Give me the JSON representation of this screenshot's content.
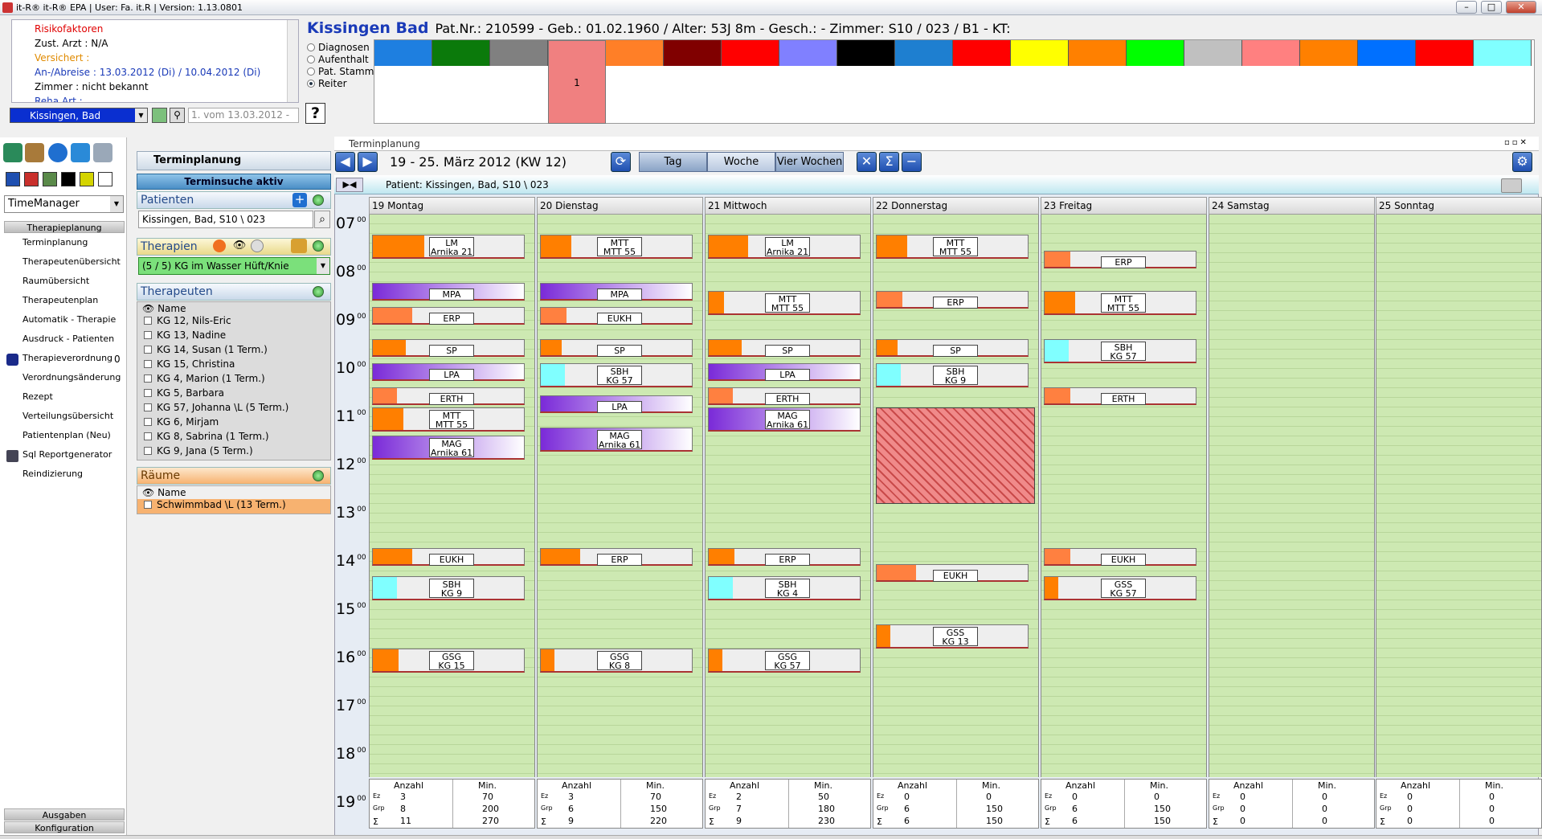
{
  "window": {
    "title": "it-R® it-R® EPA | User: Fa. it.R | Version: 1.13.0801",
    "min": "–",
    "max": "□",
    "close": "✕"
  },
  "info": {
    "lines": [
      {
        "text": "Risikofaktoren",
        "color": "#e00000"
      },
      {
        "text": "Zust. Arzt : N/A",
        "color": "#000000"
      },
      {
        "text": "Versichert :",
        "color": "#e08a00"
      },
      {
        "text": "An-/Abreise : 13.03.2012 (Di) / 10.04.2012 (Di)",
        "color": "#1a3ab8"
      },
      {
        "text": "Zimmer : nicht bekannt",
        "color": "#000000"
      },
      {
        "text": "Reha Art :",
        "color": "#1a3ab8"
      }
    ],
    "radios": [
      {
        "label": "Diagnosen",
        "on": false
      },
      {
        "label": "Aufenthalt",
        "on": false
      },
      {
        "label": "Pat. Stamm",
        "on": false
      },
      {
        "label": "Reiter",
        "on": true
      }
    ],
    "patient_combo": "Kissingen, Bad",
    "vom_combo": "1. vom 13.03.2012 -",
    "help": "?"
  },
  "patient_header": {
    "name": "Kissingen Bad",
    "rest": "Pat.Nr.: 210599  -  Geb.: 01.02.1960 / Alter: 53J 8m  -  Gesch.:     -  Zimmer: S10 / 023 / B1  -  KT:"
  },
  "color_strip": {
    "colors": [
      "#1e7fe0",
      "#0b7a0b",
      "#808080",
      "#f08080",
      "#ff7f27",
      "#800000",
      "#ff0000",
      "#8080ff",
      "#000000",
      "#1e7fd0",
      "#ff0000",
      "#ffff00",
      "#ff8000",
      "#00ff00",
      "#c0c0c0",
      "#ff8080",
      "#ff8000",
      "#0070ff",
      "#ff0000",
      "#80ffff"
    ],
    "selected_label": "1"
  },
  "leftnav": {
    "combo": "TimeManager",
    "header": "Therapieplanung",
    "items": [
      "Terminplanung",
      "Therapeutenübersicht",
      "Raumübersicht",
      "Therapeutenplan",
      "Automatik - Therapie",
      "Ausdruck - Patienten",
      "Therapieverordnung",
      "Verordnungsänderung",
      "Rezept",
      "Verteilungsübersicht",
      "Patientenplan (Neu)",
      "Sql Reportgenerator",
      "Reindizierung"
    ],
    "therapieverordnung_count": "0",
    "footer1": "Ausgaben",
    "footer2": "Konfiguration",
    "squares": [
      "#1f4fb0",
      "#c9302c",
      "#5a8a4a",
      "#000000",
      "#d4d400",
      "#ffffff"
    ]
  },
  "mid": {
    "title": "Terminplanung",
    "subtitle": "Terminsuche aktiv",
    "patienten": "Patienten",
    "patient_search": "Kissingen, Bad, S10 \\ 023",
    "therapien": "Therapien",
    "therapie_combo": "(5 / 5) KG im Wasser Hüft/Knie",
    "therapeuten": "Therapeuten",
    "name_col": "Name",
    "therapists": [
      "KG 12, Nils-Eric",
      "KG 13, Nadine",
      "KG 14, Susan  (1 Term.)",
      "KG 15, Christina",
      "KG 4, Marion  (1 Term.)",
      "KG 5, Barbara",
      "KG 57, Johanna \\L  (5 Term.)",
      "KG 6, Mirjam",
      "KG 8, Sabrina  (1 Term.)",
      "KG 9, Jana  (5 Term.)"
    ],
    "raeume": "Räume",
    "rooms": [
      "Schwimmbad \\L  (13 Term.)"
    ]
  },
  "cal": {
    "window_title": "Terminplanung",
    "week": "19 - 25. März 2012 (KW 12)",
    "views": [
      "Tag",
      "Woche",
      "Vier Wochen"
    ],
    "patient": "Patient: Kissingen, Bad, S10 \\ 023",
    "days": [
      "19 Montag",
      "20 Dienstag",
      "21 Mittwoch",
      "22 Donnerstag",
      "23 Freitag",
      "24 Samstag",
      "25 Sonntag"
    ],
    "hours": [
      "07",
      "08",
      "09",
      "10",
      "11",
      "12",
      "13",
      "14",
      "15",
      "16",
      "17",
      "18",
      "19"
    ],
    "minutes": "00",
    "stats_headers": [
      "Anzahl",
      "Min."
    ],
    "stats_rowlabels": [
      "Ez",
      "Grp",
      "Σ"
    ],
    "stats": [
      [
        [
          "3",
          "70"
        ],
        [
          "8",
          "200"
        ],
        [
          "11",
          "270"
        ]
      ],
      [
        [
          "3",
          "70"
        ],
        [
          "6",
          "150"
        ],
        [
          "9",
          "220"
        ]
      ],
      [
        [
          "2",
          "50"
        ],
        [
          "7",
          "180"
        ],
        [
          "9",
          "230"
        ]
      ],
      [
        [
          "0",
          "0"
        ],
        [
          "6",
          "150"
        ],
        [
          "6",
          "150"
        ]
      ],
      [
        [
          "0",
          "0"
        ],
        [
          "6",
          "150"
        ],
        [
          "6",
          "150"
        ]
      ],
      [
        [
          "0",
          "0"
        ],
        [
          "0",
          "0"
        ],
        [
          "0",
          "0"
        ]
      ],
      [
        [
          "0",
          "0"
        ],
        [
          "0",
          "0"
        ],
        [
          "0",
          "0"
        ]
      ]
    ]
  },
  "appointments": [
    {
      "day": 0,
      "start": 7.25,
      "dur": 0.5,
      "l1": "LM",
      "l2": "Arnika 21",
      "color": "#ff7f00",
      "cw": 0.34
    },
    {
      "day": 0,
      "start": 8.25,
      "dur": 0.33,
      "l1": "MPA",
      "l2": "",
      "color": "",
      "grad": true
    },
    {
      "day": 0,
      "start": 8.75,
      "dur": 0.33,
      "l1": "ERP",
      "l2": "",
      "color": "#ff8040",
      "cw": 0.26
    },
    {
      "day": 0,
      "start": 9.42,
      "dur": 0.33,
      "l1": "SP",
      "l2": "",
      "color": "#ff7f00",
      "cw": 0.22
    },
    {
      "day": 0,
      "start": 9.92,
      "dur": 0.33,
      "l1": "LPA",
      "l2": "",
      "color": "",
      "grad": true
    },
    {
      "day": 0,
      "start": 10.42,
      "dur": 0.33,
      "l1": "ERTH",
      "l2": "",
      "color": "#ff8040",
      "cw": 0.16
    },
    {
      "day": 0,
      "start": 10.83,
      "dur": 0.5,
      "l1": "MTT",
      "l2": "MTT 55",
      "color": "#ff7f00",
      "cw": 0.2
    },
    {
      "day": 0,
      "start": 11.42,
      "dur": 0.5,
      "l1": "MAG",
      "l2": "Arnika 61",
      "color": "",
      "grad": true
    },
    {
      "day": 0,
      "start": 13.75,
      "dur": 0.33,
      "l1": "EUKH",
      "l2": "",
      "color": "#ff7f00",
      "cw": 0.26
    },
    {
      "day": 0,
      "start": 14.33,
      "dur": 0.5,
      "l1": "SBH",
      "l2": "KG 9",
      "color": "#80ffff",
      "cw": 0.16
    },
    {
      "day": 0,
      "start": 15.83,
      "dur": 0.5,
      "l1": "GSG",
      "l2": "KG 15",
      "color": "#ff7f00",
      "cw": 0.17
    },
    {
      "day": 1,
      "start": 7.25,
      "dur": 0.5,
      "l1": "MTT",
      "l2": "MTT 55",
      "color": "#ff7f00",
      "cw": 0.2
    },
    {
      "day": 1,
      "start": 8.25,
      "dur": 0.33,
      "l1": "MPA",
      "l2": "",
      "color": "",
      "grad": true
    },
    {
      "day": 1,
      "start": 8.75,
      "dur": 0.33,
      "l1": "EUKH",
      "l2": "",
      "color": "#ff8040",
      "cw": 0.17
    },
    {
      "day": 1,
      "start": 9.42,
      "dur": 0.33,
      "l1": "SP",
      "l2": "",
      "color": "#ff7f00",
      "cw": 0.14
    },
    {
      "day": 1,
      "start": 9.92,
      "dur": 0.5,
      "l1": "SBH",
      "l2": "KG 57",
      "color": "#80ffff",
      "cw": 0.16
    },
    {
      "day": 1,
      "start": 10.58,
      "dur": 0.33,
      "l1": "LPA",
      "l2": "",
      "color": "",
      "grad": true
    },
    {
      "day": 1,
      "start": 11.25,
      "dur": 0.5,
      "l1": "MAG",
      "l2": "Arnika 61",
      "color": "",
      "grad": true
    },
    {
      "day": 1,
      "start": 13.75,
      "dur": 0.33,
      "l1": "ERP",
      "l2": "",
      "color": "#ff7f00",
      "cw": 0.26
    },
    {
      "day": 1,
      "start": 15.83,
      "dur": 0.5,
      "l1": "GSG",
      "l2": "KG 8",
      "color": "#ff7f00",
      "cw": 0.09
    },
    {
      "day": 2,
      "start": 7.25,
      "dur": 0.5,
      "l1": "LM",
      "l2": "Arnika 21",
      "color": "#ff7f00",
      "cw": 0.26
    },
    {
      "day": 2,
      "start": 8.42,
      "dur": 0.5,
      "l1": "MTT",
      "l2": "MTT 55",
      "color": "#ff7f00",
      "cw": 0.1
    },
    {
      "day": 2,
      "start": 9.42,
      "dur": 0.33,
      "l1": "SP",
      "l2": "",
      "color": "#ff7f00",
      "cw": 0.22
    },
    {
      "day": 2,
      "start": 9.92,
      "dur": 0.33,
      "l1": "LPA",
      "l2": "",
      "color": "",
      "grad": true
    },
    {
      "day": 2,
      "start": 10.42,
      "dur": 0.33,
      "l1": "ERTH",
      "l2": "",
      "color": "#ff8040",
      "cw": 0.16
    },
    {
      "day": 2,
      "start": 10.83,
      "dur": 0.5,
      "l1": "MAG",
      "l2": "Arnika 61",
      "color": "",
      "grad": true
    },
    {
      "day": 2,
      "start": 13.75,
      "dur": 0.33,
      "l1": "ERP",
      "l2": "",
      "color": "#ff7f00",
      "cw": 0.17
    },
    {
      "day": 2,
      "start": 14.33,
      "dur": 0.5,
      "l1": "SBH",
      "l2": "KG 4",
      "color": "#80ffff",
      "cw": 0.16
    },
    {
      "day": 2,
      "start": 15.83,
      "dur": 0.5,
      "l1": "GSG",
      "l2": "KG 57",
      "color": "#ff7f00",
      "cw": 0.09
    },
    {
      "day": 3,
      "start": 7.25,
      "dur": 0.5,
      "l1": "MTT",
      "l2": "MTT 55",
      "color": "#ff7f00",
      "cw": 0.2
    },
    {
      "day": 3,
      "start": 8.42,
      "dur": 0.33,
      "l1": "ERP",
      "l2": "",
      "color": "#ff8040",
      "cw": 0.17
    },
    {
      "day": 3,
      "start": 9.42,
      "dur": 0.33,
      "l1": "SP",
      "l2": "",
      "color": "#ff7f00",
      "cw": 0.14
    },
    {
      "day": 3,
      "start": 9.92,
      "dur": 0.5,
      "l1": "SBH",
      "l2": "KG 9",
      "color": "#80ffff",
      "cw": 0.16
    },
    {
      "day": 3,
      "start": 14.08,
      "dur": 0.33,
      "l1": "EUKH",
      "l2": "",
      "color": "#ff8040",
      "cw": 0.26
    },
    {
      "day": 3,
      "start": 15.33,
      "dur": 0.5,
      "l1": "GSS",
      "l2": "KG 13",
      "color": "#ff7f00",
      "cw": 0.09
    },
    {
      "day": 4,
      "start": 7.58,
      "dur": 0.33,
      "l1": "ERP",
      "l2": "",
      "color": "#ff8040",
      "cw": 0.17
    },
    {
      "day": 4,
      "start": 8.42,
      "dur": 0.5,
      "l1": "MTT",
      "l2": "MTT 55",
      "color": "#ff7f00",
      "cw": 0.2
    },
    {
      "day": 4,
      "start": 9.42,
      "dur": 0.5,
      "l1": "SBH",
      "l2": "KG 57",
      "color": "#80ffff",
      "cw": 0.16
    },
    {
      "day": 4,
      "start": 10.42,
      "dur": 0.33,
      "l1": "ERTH",
      "l2": "",
      "color": "#ff8040",
      "cw": 0.17
    },
    {
      "day": 4,
      "start": 13.75,
      "dur": 0.33,
      "l1": "EUKH",
      "l2": "",
      "color": "#ff8040",
      "cw": 0.17
    },
    {
      "day": 4,
      "start": 14.33,
      "dur": 0.5,
      "l1": "GSS",
      "l2": "KG 57",
      "color": "#ff7f00",
      "cw": 0.09
    }
  ],
  "blocked": {
    "day": 3,
    "start": 10.83,
    "end": 12.83
  }
}
